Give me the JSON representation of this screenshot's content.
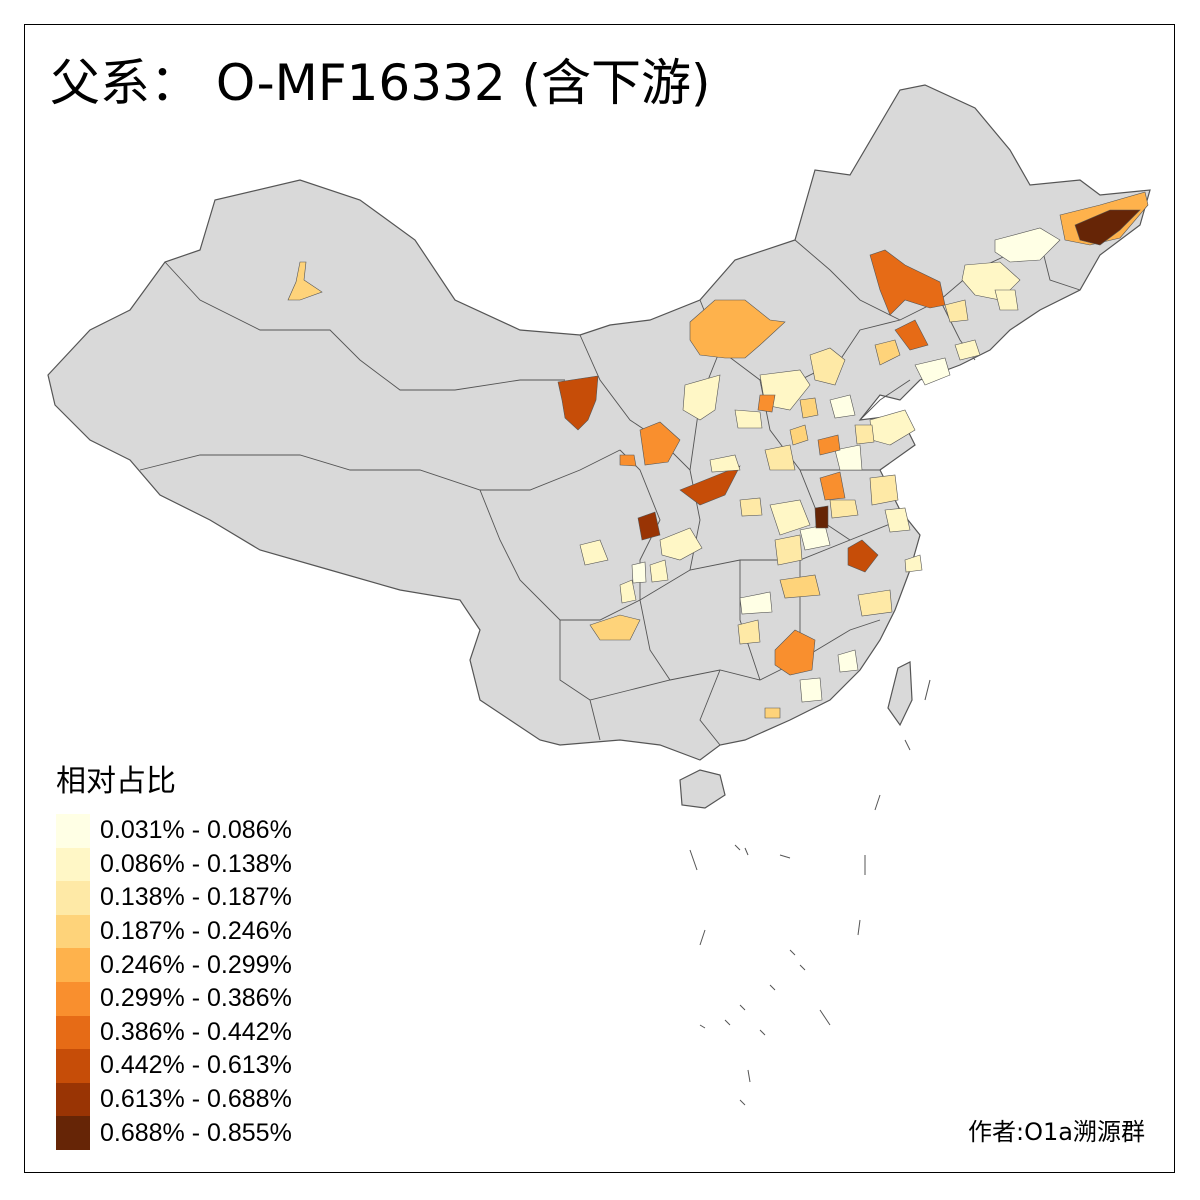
{
  "title": "父系： O-MF16332 (含下游)",
  "legend": {
    "title": "相对占比",
    "items": [
      {
        "label": "0.031% - 0.086%",
        "color": "#FFFFE5"
      },
      {
        "label": "0.086% - 0.138%",
        "color": "#FFF7C6"
      },
      {
        "label": "0.138% - 0.187%",
        "color": "#FEE9A6"
      },
      {
        "label": "0.187% - 0.246%",
        "color": "#FED37A"
      },
      {
        "label": "0.246% - 0.299%",
        "color": "#FEB24C"
      },
      {
        "label": "0.299% - 0.386%",
        "color": "#F98F2E"
      },
      {
        "label": "0.386% - 0.442%",
        "color": "#E66B16"
      },
      {
        "label": "0.442% - 0.613%",
        "color": "#C64D08"
      },
      {
        "label": "0.613% - 0.688%",
        "color": "#993404"
      },
      {
        "label": "0.688% - 0.855%",
        "color": "#662506"
      }
    ]
  },
  "author": "作者:O1a溯源群",
  "colors": {
    "base_fill": "#D9D9D9",
    "border": "#555555"
  }
}
